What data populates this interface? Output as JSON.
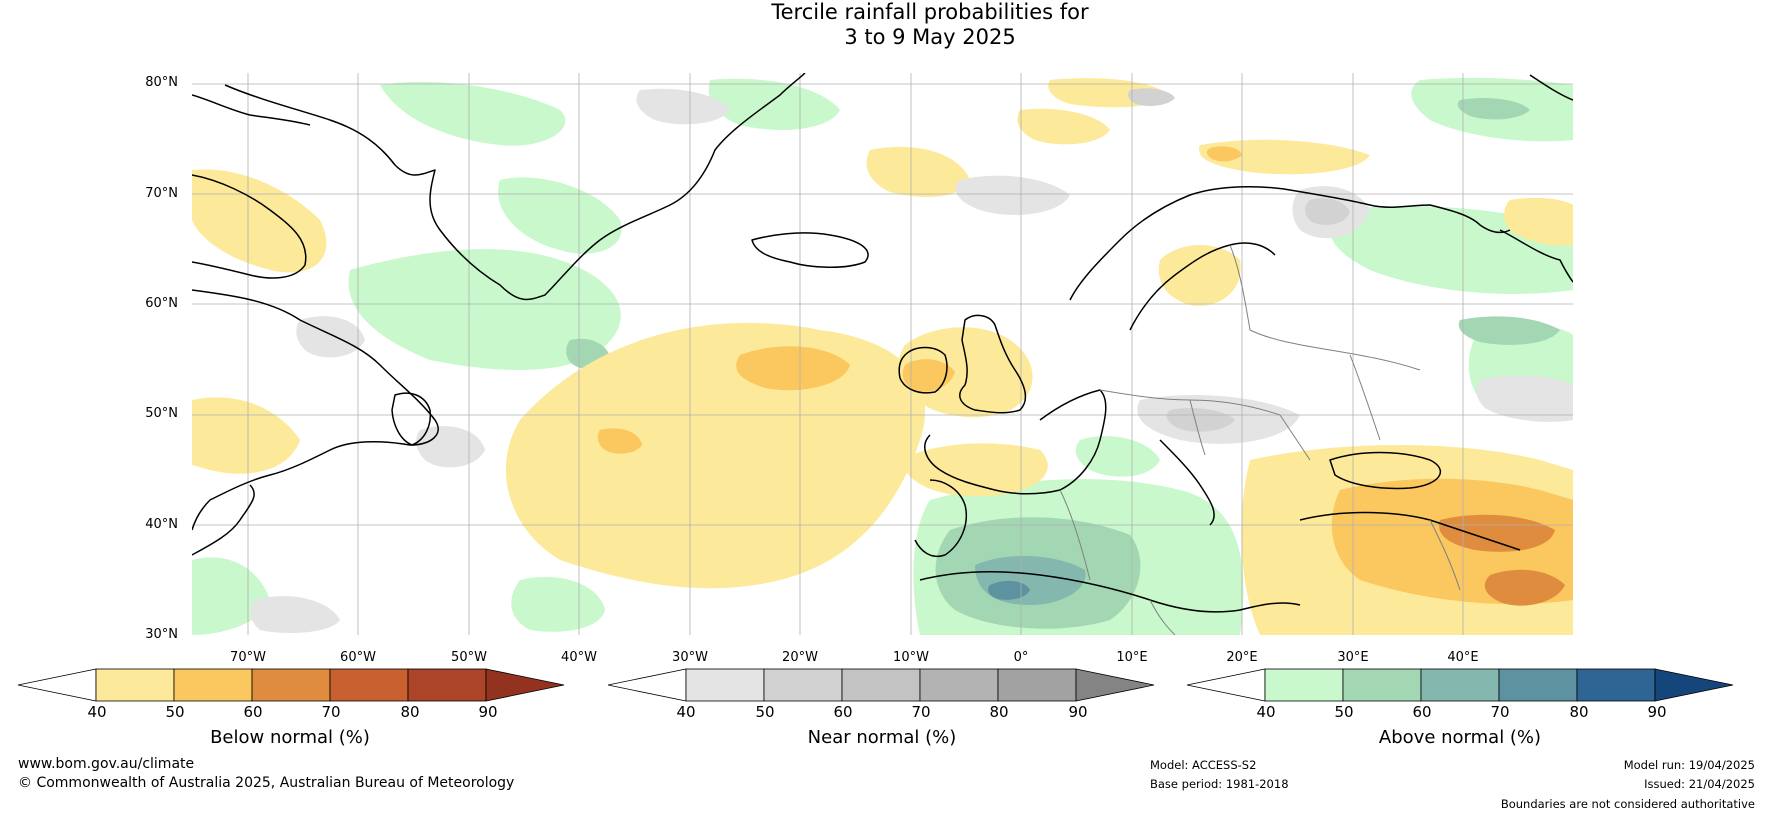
{
  "title": {
    "line1": "Tercile rainfall probabilities for",
    "line2": "3 to 9 May 2025"
  },
  "map": {
    "lat_labels": [
      "80°N",
      "70°N",
      "60°N",
      "50°N",
      "40°N",
      "30°N"
    ],
    "lon_labels": [
      "70°W",
      "60°W",
      "50°W",
      "40°W",
      "30°W",
      "20°W",
      "10°W",
      "0°",
      "10°E",
      "20°E",
      "30°E",
      "40°E"
    ],
    "colors": {
      "land_outline": "#000000",
      "border": "#808080",
      "grid": "#b0b0b0"
    }
  },
  "colorbars": {
    "below": {
      "title": "Below normal (%)",
      "ticks": [
        "40",
        "50",
        "60",
        "70",
        "80",
        "90"
      ],
      "colors": [
        "#ffffff",
        "#fde99a",
        "#fbc75f",
        "#df8c3e",
        "#c8612f",
        "#ab4428",
        "#93321f"
      ]
    },
    "near": {
      "title": "Near normal (%)",
      "ticks": [
        "40",
        "50",
        "60",
        "70",
        "80",
        "90"
      ],
      "colors": [
        "#ffffff",
        "#e4e4e4",
        "#d2d2d2",
        "#c3c3c3",
        "#b3b3b3",
        "#a2a2a2",
        "#848484"
      ]
    },
    "above": {
      "title": "Above normal (%)",
      "ticks": [
        "40",
        "50",
        "60",
        "70",
        "80",
        "90"
      ],
      "colors": [
        "#ffffff",
        "#c8f8cb",
        "#a3d7b4",
        "#84b7ae",
        "#5d93a1",
        "#2f6595",
        "#15467b"
      ]
    }
  },
  "footer": {
    "url": "www.bom.gov.au/climate",
    "copyright": "© Commonwealth of Australia 2025, Australian Bureau of Meteorology",
    "model": "Model: ACCESS-S2",
    "base_period": "Base period: 1981-2018",
    "model_run": "Model run: 19/04/2025",
    "issued": "Issued: 21/04/2025",
    "disclaimer": "Boundaries are not considered authoritative"
  }
}
